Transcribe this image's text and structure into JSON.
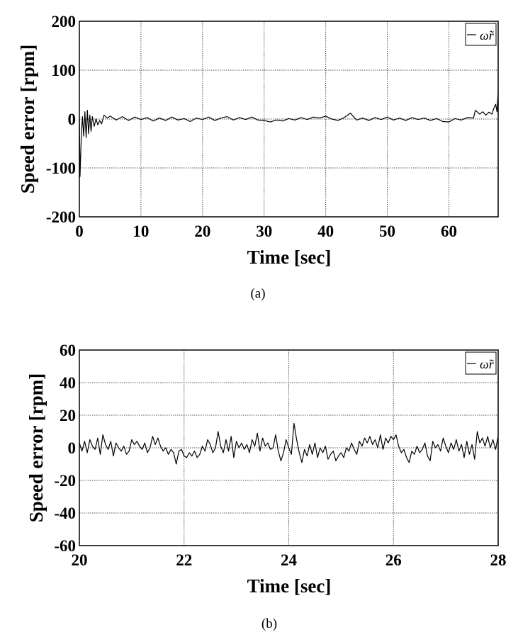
{
  "chart_data": [
    {
      "type": "line",
      "caption": "(a)",
      "xlabel": "Time [sec]",
      "ylabel": "Speed error [rpm]",
      "xlim": [
        0,
        68
      ],
      "ylim": [
        -200,
        200
      ],
      "xticks": [
        0,
        10,
        20,
        30,
        40,
        50,
        60
      ],
      "yticks": [
        -200,
        -100,
        0,
        100,
        200
      ],
      "grid": true,
      "legend": {
        "placement": "top-right",
        "entries": [
          "ω̃r"
        ]
      },
      "series": [
        {
          "name": "ω̃r",
          "color": "#000000",
          "points": [
            [
              0,
              0
            ],
            [
              0.1,
              -118
            ],
            [
              0.3,
              -40
            ],
            [
              0.5,
              5
            ],
            [
              0.7,
              -35
            ],
            [
              0.9,
              15
            ],
            [
              1.1,
              -38
            ],
            [
              1.3,
              18
            ],
            [
              1.5,
              -30
            ],
            [
              1.7,
              8
            ],
            [
              1.9,
              -25
            ],
            [
              2.1,
              5
            ],
            [
              2.4,
              -15
            ],
            [
              2.7,
              0
            ],
            [
              3.0,
              -12
            ],
            [
              3.3,
              -3
            ],
            [
              3.6,
              -10
            ],
            [
              4.0,
              8
            ],
            [
              4.5,
              2
            ],
            [
              5,
              6
            ],
            [
              6,
              -2
            ],
            [
              7,
              5
            ],
            [
              8,
              -3
            ],
            [
              9,
              4
            ],
            [
              10,
              -1
            ],
            [
              11,
              3
            ],
            [
              12,
              -4
            ],
            [
              13,
              2
            ],
            [
              14,
              -3
            ],
            [
              15,
              4
            ],
            [
              16,
              -2
            ],
            [
              17,
              1
            ],
            [
              18,
              -5
            ],
            [
              19,
              2
            ],
            [
              20,
              -1
            ],
            [
              21,
              4
            ],
            [
              22,
              -3
            ],
            [
              23,
              2
            ],
            [
              24,
              5
            ],
            [
              25,
              -2
            ],
            [
              26,
              3
            ],
            [
              27,
              -1
            ],
            [
              28,
              4
            ],
            [
              29,
              -2
            ],
            [
              30,
              -3
            ],
            [
              31,
              -6
            ],
            [
              32,
              -2
            ],
            [
              33,
              -4
            ],
            [
              34,
              1
            ],
            [
              35,
              -2
            ],
            [
              36,
              3
            ],
            [
              37,
              -1
            ],
            [
              38,
              4
            ],
            [
              39,
              2
            ],
            [
              40,
              6
            ],
            [
              41,
              0
            ],
            [
              42,
              -3
            ],
            [
              43,
              3
            ],
            [
              44,
              12
            ],
            [
              45,
              -2
            ],
            [
              46,
              2
            ],
            [
              47,
              -3
            ],
            [
              48,
              3
            ],
            [
              49,
              -1
            ],
            [
              50,
              4
            ],
            [
              51,
              -2
            ],
            [
              52,
              2
            ],
            [
              53,
              -3
            ],
            [
              54,
              3
            ],
            [
              55,
              -1
            ],
            [
              56,
              2
            ],
            [
              57,
              -3
            ],
            [
              58,
              1
            ],
            [
              59,
              -5
            ],
            [
              60,
              -6
            ],
            [
              61,
              1
            ],
            [
              62,
              -2
            ],
            [
              63,
              3
            ],
            [
              64,
              2
            ],
            [
              64.3,
              18
            ],
            [
              65,
              10
            ],
            [
              65.5,
              15
            ],
            [
              66,
              8
            ],
            [
              66.5,
              14
            ],
            [
              67,
              10
            ],
            [
              67.3,
              22
            ],
            [
              67.6,
              30
            ],
            [
              67.8,
              15
            ],
            [
              68,
              55
            ]
          ]
        }
      ]
    },
    {
      "type": "line",
      "caption": "(b)",
      "xlabel": "Time [sec]",
      "ylabel": "Speed error [rpm]",
      "xlim": [
        20,
        28
      ],
      "ylim": [
        -60,
        60
      ],
      "xticks": [
        20,
        22,
        24,
        26,
        28
      ],
      "yticks": [
        -60,
        -40,
        -20,
        0,
        20,
        40,
        60
      ],
      "grid": true,
      "legend": {
        "placement": "top-right",
        "entries": [
          "ω̃r"
        ]
      },
      "series": [
        {
          "name": "ω̃r",
          "color": "#000000",
          "x_start": 20,
          "x_step": 0.05,
          "values": [
            3,
            -2,
            4,
            -3,
            5,
            1,
            -1,
            6,
            -4,
            8,
            2,
            -1,
            4,
            -5,
            3,
            0,
            -2,
            1,
            -4,
            -2,
            5,
            2,
            4,
            1,
            -1,
            3,
            -3,
            0,
            7,
            2,
            6,
            1,
            -2,
            0,
            -4,
            -1,
            -3,
            -10,
            -2,
            -1,
            -5,
            -6,
            -3,
            -5,
            -2,
            -6,
            -4,
            1,
            -2,
            5,
            2,
            -3,
            0,
            10,
            1,
            -3,
            5,
            -2,
            7,
            -6,
            4,
            0,
            3,
            -1,
            2,
            -3,
            5,
            1,
            9,
            -2,
            6,
            1,
            3,
            -1,
            0,
            8,
            -2,
            -8,
            -3,
            5,
            0,
            -4,
            15,
            5,
            -3,
            -9,
            -1,
            -5,
            2,
            -4,
            3,
            -6,
            0,
            -3,
            1,
            -7,
            -4,
            -2,
            -8,
            -5,
            -3,
            -6,
            0,
            -2,
            3,
            -1,
            -4,
            4,
            1,
            6,
            3,
            7,
            2,
            5,
            0,
            8,
            -1,
            6,
            3,
            7,
            5,
            8,
            1,
            -3,
            -1,
            -6,
            -9,
            -2,
            -4,
            1,
            -3,
            -1,
            3,
            -5,
            -8,
            4,
            0,
            2,
            -2,
            6,
            1,
            -3,
            3,
            -1,
            5,
            -2,
            2,
            -6,
            4,
            -4,
            2,
            -7,
            10,
            3,
            6,
            1,
            7,
            0,
            5,
            -1,
            7
          ]
        }
      ]
    }
  ]
}
